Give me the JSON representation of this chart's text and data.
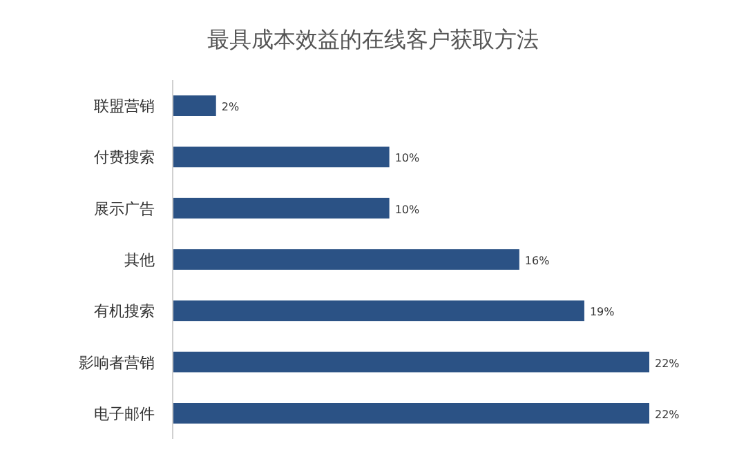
{
  "chart_data": {
    "type": "bar",
    "orientation": "horizontal",
    "title": "最具成本效益的在线客户获取方法",
    "categories": [
      "联盟营销",
      "付费搜索",
      "展示广告",
      "其他",
      "有机搜索",
      "影响者营销",
      "电子邮件"
    ],
    "values": [
      2,
      10,
      10,
      16,
      19,
      22,
      22
    ],
    "value_labels": [
      "2%",
      "10%",
      "10%",
      "16%",
      "19%",
      "22%",
      "22%"
    ],
    "color": "#2b5285"
  }
}
